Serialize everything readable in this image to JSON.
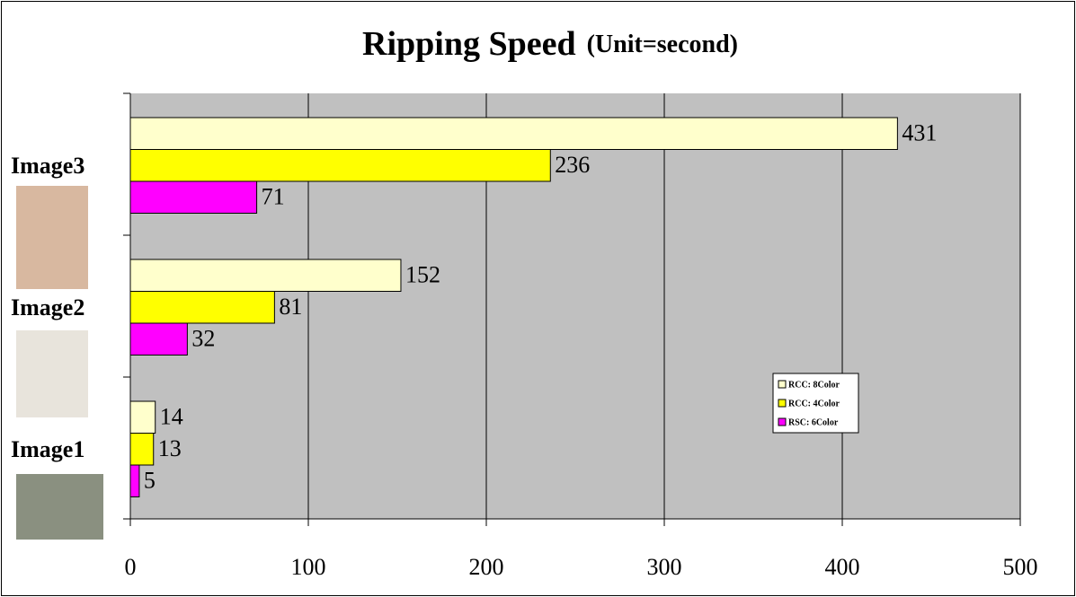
{
  "chart_data": {
    "type": "bar",
    "orientation": "horizontal",
    "title": "Ripping Speed",
    "subtitle": "(Unit=second)",
    "categories": [
      "Image1",
      "Image2",
      "Image3"
    ],
    "series": [
      {
        "name": "RCC: 8Color",
        "color": "#ffffcc",
        "values": [
          14,
          152,
          431
        ]
      },
      {
        "name": "RCC: 4Color",
        "color": "#ffff00",
        "values": [
          13,
          81,
          236
        ]
      },
      {
        "name": "RSC: 6Color",
        "color": "#ff00ff",
        "values": [
          5,
          32,
          71
        ]
      }
    ],
    "xlim": [
      0,
      500
    ],
    "xticks": [
      0,
      100,
      200,
      300,
      400,
      500
    ],
    "grid": true,
    "legend": "right"
  }
}
